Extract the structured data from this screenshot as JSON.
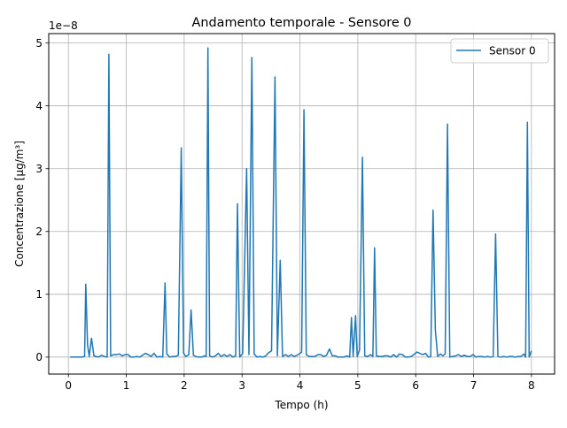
{
  "chart_data": {
    "type": "line",
    "title": "Andamento temporale - Sensore 0",
    "xlabel": "Tempo (h)",
    "ylabel": "Concentrazione [µg/m³]",
    "offset_label": "1e−8",
    "xlim": [
      -0.34,
      8.4
    ],
    "ylim": [
      -0.27,
      5.15
    ],
    "x_ticks": [
      0,
      1,
      2,
      3,
      4,
      5,
      6,
      7,
      8
    ],
    "y_ticks": [
      0,
      1,
      2,
      3,
      4,
      5
    ],
    "grid": true,
    "legend_position": "top-right",
    "colors": {
      "series": "#1f77b4",
      "grid": "#b0b0b0",
      "axes": "#000000"
    },
    "series": [
      {
        "name": "Sensor 0",
        "points": [
          [
            0.03,
            0.0
          ],
          [
            0.08,
            0.0
          ],
          [
            0.13,
            0.0
          ],
          [
            0.18,
            0.0
          ],
          [
            0.23,
            0.0
          ],
          [
            0.28,
            0.01
          ],
          [
            0.3,
            1.16
          ],
          [
            0.33,
            0.2
          ],
          [
            0.36,
            0.01
          ],
          [
            0.4,
            0.3
          ],
          [
            0.44,
            0.02
          ],
          [
            0.48,
            0.01
          ],
          [
            0.52,
            0.0
          ],
          [
            0.57,
            0.03
          ],
          [
            0.62,
            0.01
          ],
          [
            0.67,
            0.0
          ],
          [
            0.7,
            4.82
          ],
          [
            0.73,
            0.02
          ],
          [
            0.78,
            0.04
          ],
          [
            0.83,
            0.04
          ],
          [
            0.88,
            0.05
          ],
          [
            0.93,
            0.02
          ],
          [
            0.98,
            0.04
          ],
          [
            1.03,
            0.04
          ],
          [
            1.08,
            0.0
          ],
          [
            1.13,
            0.0
          ],
          [
            1.18,
            0.01
          ],
          [
            1.23,
            0.0
          ],
          [
            1.28,
            0.03
          ],
          [
            1.33,
            0.06
          ],
          [
            1.38,
            0.04
          ],
          [
            1.43,
            0.01
          ],
          [
            1.48,
            0.06
          ],
          [
            1.53,
            0.0
          ],
          [
            1.58,
            0.01
          ],
          [
            1.63,
            0.0
          ],
          [
            1.67,
            1.18
          ],
          [
            1.7,
            0.05
          ],
          [
            1.75,
            0.0
          ],
          [
            1.8,
            0.01
          ],
          [
            1.85,
            0.01
          ],
          [
            1.9,
            0.03
          ],
          [
            1.95,
            3.33
          ],
          [
            1.99,
            0.06
          ],
          [
            2.03,
            0.01
          ],
          [
            2.08,
            0.04
          ],
          [
            2.12,
            0.75
          ],
          [
            2.16,
            0.03
          ],
          [
            2.2,
            0.01
          ],
          [
            2.25,
            0.0
          ],
          [
            2.3,
            0.0
          ],
          [
            2.35,
            0.02
          ],
          [
            2.38,
            0.01
          ],
          [
            2.41,
            4.92
          ],
          [
            2.44,
            0.02
          ],
          [
            2.49,
            0.0
          ],
          [
            2.54,
            0.02
          ],
          [
            2.59,
            0.06
          ],
          [
            2.64,
            0.01
          ],
          [
            2.69,
            0.04
          ],
          [
            2.74,
            0.01
          ],
          [
            2.79,
            0.04
          ],
          [
            2.84,
            0.0
          ],
          [
            2.89,
            0.02
          ],
          [
            2.92,
            2.44
          ],
          [
            2.96,
            0.0
          ],
          [
            3.01,
            0.06
          ],
          [
            3.08,
            3.0
          ],
          [
            3.12,
            0.04
          ],
          [
            3.17,
            4.77
          ],
          [
            3.21,
            0.05
          ],
          [
            3.26,
            0.0
          ],
          [
            3.31,
            0.01
          ],
          [
            3.36,
            0.0
          ],
          [
            3.41,
            0.02
          ],
          [
            3.46,
            0.07
          ],
          [
            3.51,
            0.1
          ],
          [
            3.57,
            4.46
          ],
          [
            3.61,
            0.02
          ],
          [
            3.66,
            1.54
          ],
          [
            3.7,
            0.01
          ],
          [
            3.75,
            0.04
          ],
          [
            3.8,
            0.01
          ],
          [
            3.85,
            0.04
          ],
          [
            3.9,
            0.01
          ],
          [
            3.95,
            0.03
          ],
          [
            4.0,
            0.06
          ],
          [
            4.03,
            0.08
          ],
          [
            4.07,
            3.94
          ],
          [
            4.11,
            0.04
          ],
          [
            4.16,
            0.01
          ],
          [
            4.21,
            0.01
          ],
          [
            4.26,
            0.01
          ],
          [
            4.31,
            0.04
          ],
          [
            4.36,
            0.04
          ],
          [
            4.41,
            0.01
          ],
          [
            4.46,
            0.03
          ],
          [
            4.51,
            0.13
          ],
          [
            4.56,
            0.02
          ],
          [
            4.61,
            0.02
          ],
          [
            4.66,
            0.0
          ],
          [
            4.71,
            0.0
          ],
          [
            4.76,
            0.0
          ],
          [
            4.81,
            0.02
          ],
          [
            4.86,
            0.0
          ],
          [
            4.89,
            0.63
          ],
          [
            4.92,
            0.01
          ],
          [
            4.96,
            0.66
          ],
          [
            4.99,
            0.01
          ],
          [
            5.03,
            0.11
          ],
          [
            5.08,
            3.18
          ],
          [
            5.12,
            0.02
          ],
          [
            5.17,
            0.01
          ],
          [
            5.22,
            0.04
          ],
          [
            5.26,
            0.01
          ],
          [
            5.29,
            1.74
          ],
          [
            5.32,
            0.02
          ],
          [
            5.37,
            0.01
          ],
          [
            5.42,
            0.01
          ],
          [
            5.47,
            0.02
          ],
          [
            5.52,
            0.02
          ],
          [
            5.57,
            0.0
          ],
          [
            5.62,
            0.04
          ],
          [
            5.67,
            0.0
          ],
          [
            5.72,
            0.05
          ],
          [
            5.77,
            0.04
          ],
          [
            5.82,
            0.0
          ],
          [
            5.87,
            0.0
          ],
          [
            5.92,
            0.01
          ],
          [
            5.97,
            0.04
          ],
          [
            6.02,
            0.08
          ],
          [
            6.07,
            0.06
          ],
          [
            6.12,
            0.04
          ],
          [
            6.17,
            0.06
          ],
          [
            6.22,
            0.0
          ],
          [
            6.26,
            0.01
          ],
          [
            6.3,
            2.34
          ],
          [
            6.34,
            0.43
          ],
          [
            6.38,
            0.01
          ],
          [
            6.43,
            0.05
          ],
          [
            6.47,
            0.02
          ],
          [
            6.51,
            0.05
          ],
          [
            6.55,
            3.71
          ],
          [
            6.59,
            0.0
          ],
          [
            6.64,
            0.01
          ],
          [
            6.69,
            0.02
          ],
          [
            6.74,
            0.04
          ],
          [
            6.79,
            0.01
          ],
          [
            6.84,
            0.03
          ],
          [
            6.89,
            0.01
          ],
          [
            6.94,
            0.01
          ],
          [
            6.99,
            0.04
          ],
          [
            7.04,
            0.0
          ],
          [
            7.09,
            0.01
          ],
          [
            7.14,
            0.01
          ],
          [
            7.19,
            0.0
          ],
          [
            7.24,
            0.01
          ],
          [
            7.29,
            0.0
          ],
          [
            7.34,
            0.01
          ],
          [
            7.38,
            1.96
          ],
          [
            7.42,
            0.01
          ],
          [
            7.47,
            0.0
          ],
          [
            7.52,
            0.01
          ],
          [
            7.57,
            0.0
          ],
          [
            7.62,
            0.01
          ],
          [
            7.67,
            0.01
          ],
          [
            7.72,
            0.0
          ],
          [
            7.77,
            0.01
          ],
          [
            7.82,
            0.01
          ],
          [
            7.87,
            0.05
          ],
          [
            7.9,
            0.0
          ],
          [
            7.93,
            3.74
          ],
          [
            7.96,
            0.0
          ],
          [
            8.0,
            0.1
          ]
        ]
      }
    ]
  }
}
